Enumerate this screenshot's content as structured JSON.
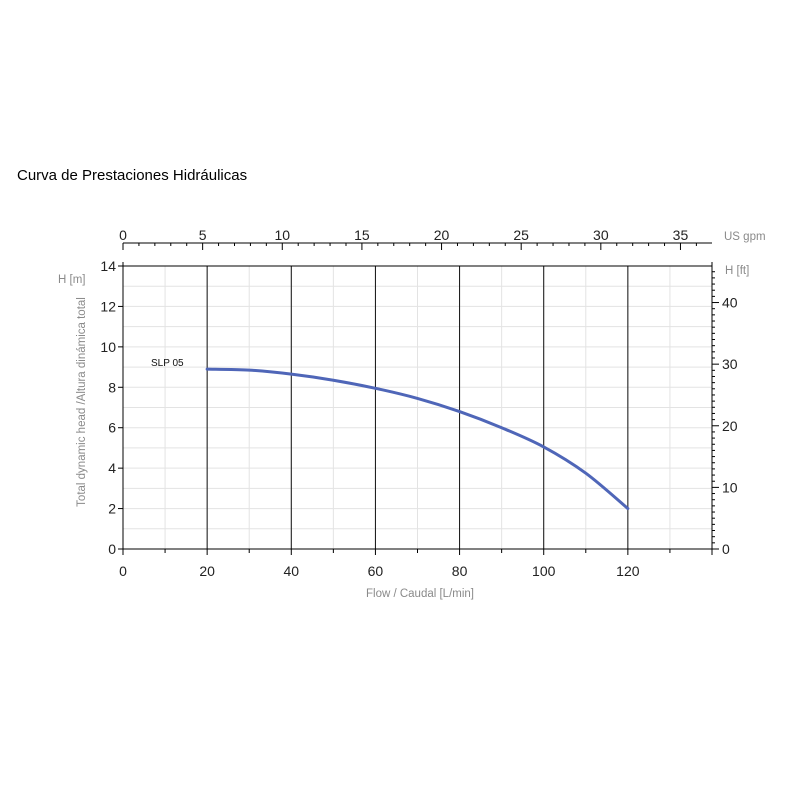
{
  "title": "Curva de Prestaciones Hidráulicas",
  "chart_data": {
    "type": "line",
    "xlabel": "Flow / Caudal [L/min]",
    "ylabel": "Total dynamic head /Altura dinámica total",
    "x_unit": "",
    "y_unit_left": "H [m]",
    "y_unit_right": "H [ft]",
    "x_unit_top": "US gpm",
    "xlim": [
      0,
      140
    ],
    "ylim": [
      0,
      14
    ],
    "x_ticks": [
      0,
      20,
      40,
      60,
      80,
      100,
      120
    ],
    "y_ticks": [
      0,
      2,
      4,
      6,
      8,
      10,
      12,
      14
    ],
    "top_axis": {
      "lim": [
        0,
        36.98
      ],
      "ticks": [
        0,
        5,
        10,
        15,
        20,
        25,
        30,
        35
      ]
    },
    "right_axis": {
      "lim": [
        0,
        45.93
      ],
      "ticks": [
        0,
        10,
        20,
        30,
        40
      ]
    },
    "grid": true,
    "series": [
      {
        "name": "SLP 05",
        "color": "#4f66b8",
        "x": [
          20,
          30,
          40,
          50,
          60,
          70,
          80,
          90,
          100,
          110,
          120
        ],
        "y": [
          8.9,
          8.85,
          8.65,
          8.35,
          7.95,
          7.45,
          6.8,
          6.0,
          5.05,
          3.75,
          2.0
        ]
      }
    ]
  }
}
